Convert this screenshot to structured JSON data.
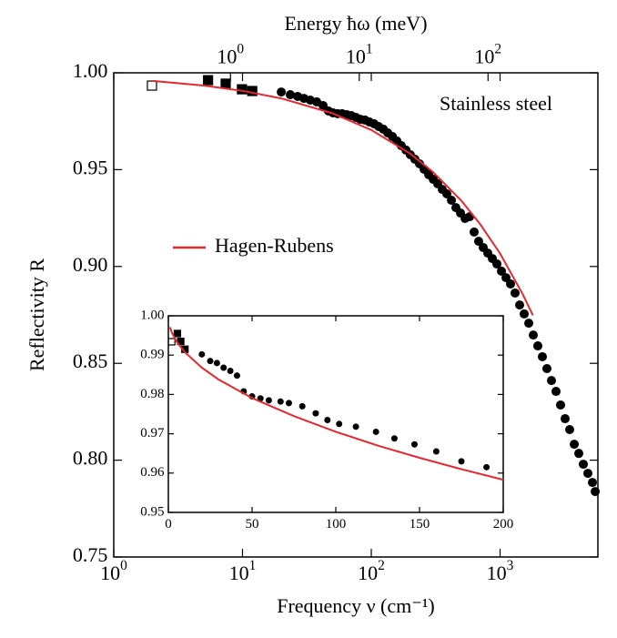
{
  "chart_data": [
    {
      "type": "scatter",
      "x_label": "Frequency ν (cm⁻¹)",
      "x2_label": "Energy ħω (meV)",
      "y_label": "Reflectivity R",
      "annotation": "Stainless steel",
      "xscale": "log",
      "x2scale": "log",
      "xlim": [
        1,
        5750
      ],
      "ylim": [
        0.75,
        1.0
      ],
      "x2lim": [
        0.124,
        713
      ],
      "xticks": [
        {
          "value": 1,
          "label": "10",
          "exponent": "0"
        },
        {
          "value": 10,
          "label": "10",
          "exponent": "1"
        },
        {
          "value": 100,
          "label": "10",
          "exponent": "2"
        },
        {
          "value": 1000,
          "label": "10",
          "exponent": "3"
        }
      ],
      "x2ticks": [
        {
          "value": 1,
          "label": "10",
          "exponent": "0"
        },
        {
          "value": 10,
          "label": "10",
          "exponent": "1"
        },
        {
          "value": 100,
          "label": "10",
          "exponent": "2"
        }
      ],
      "yticks": [
        0.75,
        {
          "value": 0.8,
          "label": "0.80"
        },
        0.85,
        {
          "value": 0.9,
          "label": "0.90"
        },
        0.95,
        {
          "value": 1.0,
          "label": "1.00"
        }
      ],
      "legend": "center-left",
      "series": [
        {
          "marker": "open-square",
          "color": "#000000",
          "x": [
            1.98
          ],
          "values": [
            0.9934
          ]
        },
        {
          "marker": "square",
          "color": "#000000",
          "x": [
            5.4,
            7.4,
            9.9,
            11.9
          ],
          "values": [
            0.9962,
            0.9944,
            0.9915,
            0.9906
          ]
        },
        {
          "marker": "circle",
          "color": "#000000",
          "x": [
            20.0,
            23.5,
            26.8,
            30.0,
            33.6,
            37.7,
            42.2,
            46.5,
            50.5,
            54.8,
            59.4,
            64.4,
            70,
            75.9,
            82.3,
            89.3,
            96.8,
            105,
            114,
            124,
            134,
            146,
            158,
            171,
            186,
            201,
            218,
            237,
            257,
            279,
            303,
            328,
            356,
            386,
            419,
            454,
            493,
            535,
            580,
            629,
            682,
            740,
            803,
            871,
            945,
            1025,
            1112,
            1206,
            1308,
            1419,
            1539,
            1670,
            1811,
            1964,
            2131,
            2311,
            2507,
            2720,
            2951,
            3200,
            3472,
            3767,
            4086,
            4432,
            4808,
            5215,
            5482
          ],
          "values": [
            0.9901,
            0.9887,
            0.9878,
            0.9868,
            0.9859,
            0.985,
            0.9831,
            0.9803,
            0.9793,
            0.9789,
            0.9789,
            0.9784,
            0.9779,
            0.977,
            0.976,
            0.9756,
            0.9746,
            0.9737,
            0.9723,
            0.9709,
            0.969,
            0.9671,
            0.9648,
            0.9624,
            0.9601,
            0.9577,
            0.9554,
            0.953,
            0.9502,
            0.9474,
            0.945,
            0.9427,
            0.9398,
            0.9375,
            0.9342,
            0.9304,
            0.9276,
            0.9248,
            0.9257,
            0.9178,
            0.913,
            0.9098,
            0.9069,
            0.9041,
            0.9013,
            0.8976,
            0.8942,
            0.891,
            0.8863,
            0.8801,
            0.8755,
            0.8707,
            0.8646,
            0.859,
            0.8534,
            0.8473,
            0.8411,
            0.8355,
            0.8285,
            0.8214,
            0.8158,
            0.8082,
            0.8035,
            0.7979,
            0.7932,
            0.7885,
            0.7838
          ]
        },
        {
          "name": "Hagen-Rubens",
          "marker": "line",
          "color": "#e8262d",
          "x": [
            2,
            5,
            10,
            20,
            50,
            100,
            200,
            300,
            500,
            700,
            1000,
            1500,
            1800
          ],
          "values": [
            0.9958,
            0.9934,
            0.9907,
            0.9868,
            0.9791,
            0.9705,
            0.9583,
            0.9489,
            0.934,
            0.9219,
            0.9067,
            0.8857,
            0.8748
          ]
        }
      ]
    },
    {
      "type": "scatter",
      "xscale": "linear",
      "xlim": [
        0,
        200
      ],
      "ylim": [
        0.95,
        1.0
      ],
      "xticks": [
        0,
        50,
        100,
        150,
        200
      ],
      "yticks": [
        0.95,
        0.96,
        0.97,
        0.98,
        0.99,
        {
          "value": 1.0,
          "label": "1.00"
        }
      ],
      "series": [
        {
          "marker": "open-square",
          "color": "#000000",
          "x": [
            2
          ],
          "values": [
            0.9934
          ]
        },
        {
          "marker": "square",
          "color": "#000000",
          "x": [
            5.4,
            7.4,
            9.9
          ],
          "values": [
            0.9955,
            0.9935,
            0.9915
          ]
        },
        {
          "marker": "circle",
          "color": "#000000",
          "x": [
            20,
            25,
            29,
            33,
            37,
            41,
            45,
            50,
            55,
            60,
            67,
            72,
            80,
            88,
            95,
            102,
            112,
            124,
            135,
            147,
            160,
            175,
            190
          ],
          "values": [
            0.9902,
            0.9885,
            0.988,
            0.9868,
            0.986,
            0.9848,
            0.9808,
            0.9795,
            0.979,
            0.9785,
            0.9782,
            0.9778,
            0.977,
            0.9752,
            0.9735,
            0.9725,
            0.9718,
            0.9705,
            0.9688,
            0.9673,
            0.9655,
            0.963,
            0.9615
          ]
        },
        {
          "marker": "line",
          "color": "#e8262d",
          "x": [
            1,
            2,
            5,
            10,
            20,
            30,
            50,
            75,
            100,
            125,
            150,
            175,
            200
          ],
          "values": [
            0.9971,
            0.9958,
            0.9934,
            0.9907,
            0.9868,
            0.9838,
            0.9791,
            0.9745,
            0.9705,
            0.967,
            0.9639,
            0.961,
            0.9583
          ]
        }
      ]
    }
  ]
}
